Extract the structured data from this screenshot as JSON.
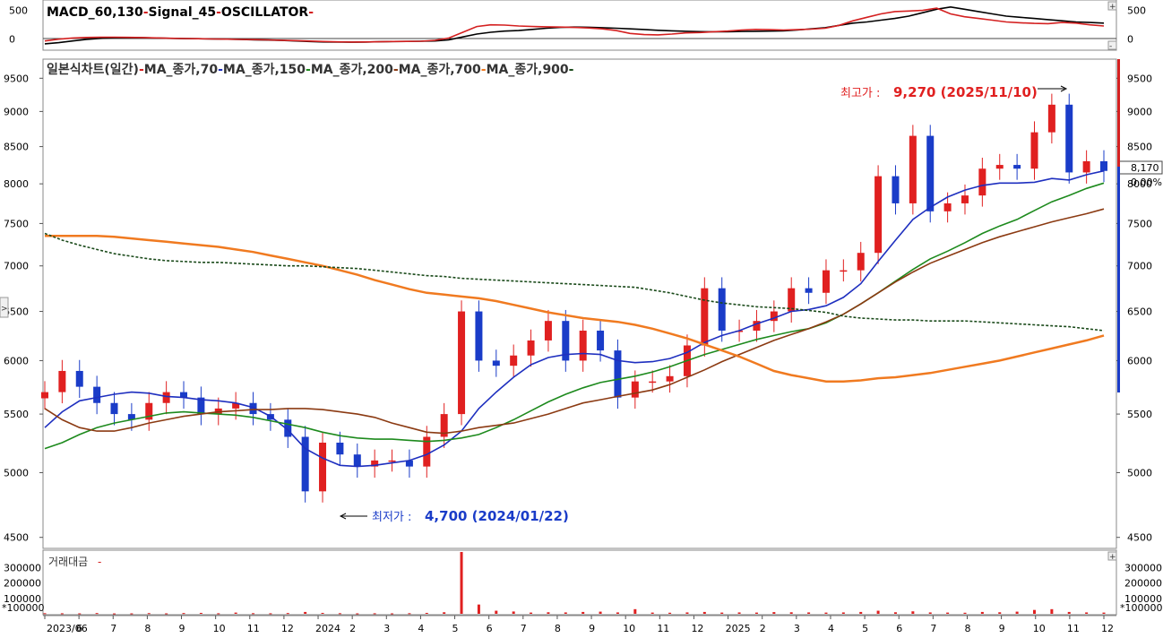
{
  "colors": {
    "macd": "#000000",
    "signal": "#d42020",
    "oscillator": "#d42020",
    "ma70": "#1e2fbf",
    "ma150": "#1d8a1d",
    "ma200": "#8b3a12",
    "ma700": "#f07a20",
    "ma900": "#1a4a1a",
    "candle_up": "#e02020",
    "candle_down": "#1a3cc8",
    "volume": "#e02020",
    "high_note": "#e02020",
    "low_note": "#1a3cc8"
  },
  "macd_panel": {
    "title_parts": [
      {
        "text": "MACD_60,130",
        "color": "#000000"
      },
      {
        "text": "-",
        "color": "#d42020"
      },
      {
        "text": "Signal_45",
        "color": "#000000"
      },
      {
        "text": "-",
        "color": "#d42020"
      },
      {
        "text": "OSCILLATOR",
        "color": "#000000"
      },
      {
        "text": "-",
        "color": "#d42020"
      }
    ],
    "y_ticks": [
      "500",
      "0"
    ],
    "macd": [
      -80,
      -60,
      -30,
      -5,
      15,
      25,
      28,
      25,
      20,
      15,
      10,
      8,
      5,
      0,
      -5,
      -10,
      -15,
      -22,
      -30,
      -40,
      -48,
      -50,
      -52,
      -50,
      -45,
      -40,
      -38,
      -36,
      -30,
      -10,
      40,
      90,
      120,
      140,
      150,
      170,
      190,
      205,
      210,
      208,
      200,
      190,
      180,
      168,
      155,
      145,
      138,
      132,
      128,
      130,
      135,
      138,
      140,
      145,
      160,
      180,
      200,
      240,
      280,
      300,
      330,
      360,
      400,
      460,
      520,
      560,
      520,
      480,
      440,
      400,
      380,
      360,
      340,
      320,
      300,
      290,
      280
    ],
    "signal": [
      -30,
      0,
      20,
      30,
      35,
      35,
      32,
      28,
      22,
      16,
      12,
      8,
      4,
      0,
      -4,
      -8,
      -12,
      -18,
      -24,
      -32,
      -40,
      -46,
      -50,
      -48,
      -44,
      -40,
      -38,
      -36,
      -20,
      20,
      120,
      220,
      250,
      245,
      230,
      220,
      215,
      210,
      205,
      195,
      180,
      150,
      100,
      80,
      75,
      90,
      110,
      115,
      130,
      140,
      160,
      170,
      165,
      160,
      165,
      175,
      190,
      240,
      320,
      380,
      440,
      480,
      490,
      500,
      540,
      440,
      390,
      360,
      330,
      300,
      285,
      275,
      270,
      290,
      280,
      250,
      230
    ]
  },
  "price_panel": {
    "legend_parts": [
      {
        "text": "일본식차트(일간)",
        "color": "#333333"
      },
      {
        "text": "-",
        "color": "#d42020"
      },
      {
        "text": "MA_종가,70",
        "color": "#333333"
      },
      {
        "text": "-",
        "color": "#1e2fbf"
      },
      {
        "text": "MA_종가,150",
        "color": "#333333"
      },
      {
        "text": "-",
        "color": "#1d8a1d"
      },
      {
        "text": "MA_종가,200",
        "color": "#333333"
      },
      {
        "text": "-",
        "color": "#8b3a12"
      },
      {
        "text": "MA_종가,700",
        "color": "#333333"
      },
      {
        "text": "-",
        "color": "#f07a20"
      },
      {
        "text": "MA_종가,900",
        "color": "#333333"
      },
      {
        "text": "-",
        "color": "#1a4a1a"
      }
    ],
    "y_ticks": [
      9500,
      9000,
      8500,
      8000,
      7500,
      7000,
      6500,
      6000,
      5500,
      5000,
      4500
    ],
    "current_price": "8,170",
    "current_change": "0.00%",
    "high_note_prefix": "최고가 : ",
    "high_note_value": "9,270 (2025/11/10)",
    "low_note_prefix": "최저가 : ",
    "low_note_value": "4,700 (2024/01/22)"
  },
  "volume_panel": {
    "title": "거래대금",
    "y_ticks": [
      "300000",
      "200000",
      "100000"
    ],
    "unit_tick": "*100000"
  },
  "x_axis": {
    "labels": [
      "2023/06",
      "6",
      "7",
      "8",
      "9",
      "10",
      "11",
      "12",
      "2024",
      "2",
      "3",
      "4",
      "5",
      "6",
      "7",
      "8",
      "9",
      "10",
      "11",
      "12",
      "2025",
      "2",
      "3",
      "4",
      "5",
      "6",
      "7",
      "8",
      "9",
      "10",
      "11",
      "12"
    ]
  },
  "chart_data": [
    {
      "type": "line",
      "title": "MACD_60,130 - Signal_45 - OSCILLATOR",
      "series": [
        {
          "name": "MACD_60,130",
          "values": [
            -80,
            -60,
            -30,
            -5,
            15,
            25,
            28,
            25,
            20,
            15,
            10,
            8,
            5,
            0,
            -5,
            -10,
            -15,
            -22,
            -30,
            -40,
            -48,
            -50,
            -52,
            -50,
            -45,
            -40,
            -38,
            -36,
            -30,
            -10,
            40,
            90,
            120,
            140,
            150,
            170,
            190,
            205,
            210,
            208,
            200,
            190,
            180,
            168,
            155,
            145,
            138,
            132,
            128,
            130,
            135,
            138,
            140,
            145,
            160,
            180,
            200,
            240,
            280,
            300,
            330,
            360,
            400,
            460,
            520,
            560,
            520,
            480,
            440,
            400,
            380,
            360,
            340,
            320,
            300,
            290,
            280
          ]
        },
        {
          "name": "Signal_45",
          "values": [
            -30,
            0,
            20,
            30,
            35,
            35,
            32,
            28,
            22,
            16,
            12,
            8,
            4,
            0,
            -4,
            -8,
            -12,
            -18,
            -24,
            -32,
            -40,
            -46,
            -50,
            -48,
            -44,
            -40,
            -38,
            -36,
            -20,
            20,
            120,
            220,
            250,
            245,
            230,
            220,
            215,
            210,
            205,
            195,
            180,
            150,
            100,
            80,
            75,
            90,
            110,
            115,
            130,
            140,
            160,
            170,
            165,
            160,
            165,
            175,
            190,
            240,
            320,
            380,
            440,
            480,
            490,
            500,
            540,
            440,
            390,
            360,
            330,
            300,
            285,
            275,
            270,
            290,
            280,
            250,
            230
          ]
        }
      ]
    },
    {
      "type": "line",
      "title": "일본식차트(일간)",
      "x": [
        "2023/06",
        "",
        "7",
        "",
        "8",
        "",
        "9",
        "",
        "10",
        "",
        "11",
        "",
        "12",
        "",
        "2024",
        "",
        "2",
        "",
        "3",
        "",
        "4",
        "",
        "5",
        "",
        "6",
        "",
        "7",
        "",
        "8",
        "",
        "9",
        "",
        "10",
        "",
        "11",
        "",
        "12",
        "",
        "2025",
        "",
        "2",
        "",
        "3",
        "",
        "4",
        "",
        "5",
        "",
        "6",
        "",
        "7",
        "",
        "8",
        "",
        "9",
        "",
        "10",
        "",
        "11",
        "",
        "12",
        ""
      ],
      "ylim": [
        4500,
        9500
      ],
      "series": [
        {
          "name": "close",
          "values": [
            5700,
            5900,
            5750,
            5600,
            5500,
            5450,
            5600,
            5700,
            5650,
            5500,
            5550,
            5600,
            5500,
            5450,
            5300,
            4850,
            5250,
            5150,
            5050,
            5100,
            5100,
            5050,
            5300,
            5500,
            6500,
            6000,
            5950,
            6050,
            6200,
            6400,
            6000,
            6300,
            6100,
            5650,
            5800,
            5800,
            5850,
            6150,
            6750,
            6300,
            6300,
            6400,
            6500,
            6750,
            6700,
            6950,
            6950,
            7150,
            8100,
            7750,
            8650,
            7650,
            7750,
            7850,
            8200,
            8250,
            8200,
            8700,
            9100,
            8150,
            8300,
            8170
          ]
        },
        {
          "name": "MA_종가,70",
          "values": [
            5380,
            5520,
            5620,
            5650,
            5680,
            5700,
            5690,
            5660,
            5650,
            5630,
            5620,
            5600,
            5560,
            5480,
            5360,
            5200,
            5120,
            5060,
            5050,
            5060,
            5080,
            5100,
            5150,
            5230,
            5350,
            5550,
            5700,
            5840,
            5960,
            6030,
            6060,
            6070,
            6060,
            6000,
            5980,
            5990,
            6020,
            6080,
            6180,
            6250,
            6300,
            6370,
            6430,
            6500,
            6520,
            6560,
            6650,
            6800,
            7050,
            7300,
            7550,
            7700,
            7830,
            7920,
            7980,
            8010,
            8010,
            8020,
            8070,
            8050,
            8120,
            8170
          ]
        },
        {
          "name": "MA_종가,150",
          "values": [
            5200,
            5250,
            5320,
            5380,
            5420,
            5450,
            5480,
            5510,
            5520,
            5510,
            5500,
            5490,
            5470,
            5440,
            5410,
            5380,
            5340,
            5310,
            5290,
            5280,
            5280,
            5270,
            5260,
            5270,
            5290,
            5320,
            5380,
            5450,
            5530,
            5610,
            5680,
            5740,
            5790,
            5820,
            5850,
            5890,
            5940,
            6000,
            6060,
            6110,
            6160,
            6210,
            6250,
            6290,
            6320,
            6380,
            6470,
            6580,
            6700,
            6830,
            6960,
            7080,
            7170,
            7270,
            7380,
            7470,
            7550,
            7660,
            7770,
            7850,
            7940,
            8010
          ]
        },
        {
          "name": "MA_종가,200",
          "values": [
            5550,
            5450,
            5380,
            5350,
            5350,
            5380,
            5420,
            5450,
            5480,
            5500,
            5520,
            5530,
            5540,
            5540,
            5550,
            5550,
            5540,
            5520,
            5500,
            5470,
            5420,
            5380,
            5340,
            5330,
            5350,
            5380,
            5400,
            5420,
            5460,
            5500,
            5550,
            5600,
            5630,
            5660,
            5690,
            5720,
            5770,
            5840,
            5910,
            5990,
            6060,
            6130,
            6200,
            6260,
            6320,
            6390,
            6470,
            6580,
            6700,
            6820,
            6930,
            7030,
            7110,
            7190,
            7270,
            7340,
            7400,
            7460,
            7520,
            7570,
            7620,
            7680
          ]
        },
        {
          "name": "MA_종가,700",
          "values": [
            7350,
            7350,
            7350,
            7350,
            7340,
            7320,
            7300,
            7280,
            7260,
            7240,
            7220,
            7190,
            7160,
            7120,
            7080,
            7040,
            7000,
            6950,
            6900,
            6840,
            6790,
            6740,
            6700,
            6680,
            6660,
            6640,
            6610,
            6570,
            6530,
            6490,
            6460,
            6430,
            6410,
            6390,
            6360,
            6320,
            6270,
            6220,
            6160,
            6100,
            6040,
            5970,
            5900,
            5860,
            5830,
            5800,
            5800,
            5810,
            5830,
            5840,
            5860,
            5880,
            5910,
            5940,
            5970,
            6000,
            6040,
            6080,
            6120,
            6160,
            6200,
            6250
          ]
        },
        {
          "name": "MA_종가,900",
          "values": [
            7380,
            7300,
            7240,
            7190,
            7140,
            7110,
            7080,
            7060,
            7050,
            7040,
            7040,
            7030,
            7020,
            7010,
            7000,
            7000,
            6990,
            6980,
            6970,
            6950,
            6930,
            6910,
            6890,
            6880,
            6860,
            6850,
            6840,
            6830,
            6820,
            6810,
            6800,
            6790,
            6780,
            6770,
            6760,
            6730,
            6700,
            6660,
            6620,
            6590,
            6570,
            6550,
            6540,
            6530,
            6510,
            6490,
            6450,
            6430,
            6420,
            6410,
            6410,
            6400,
            6400,
            6400,
            6390,
            6380,
            6370,
            6360,
            6350,
            6340,
            6320,
            6300
          ]
        }
      ]
    },
    {
      "type": "bar",
      "title": "거래대금",
      "ylim": [
        0,
        400000
      ],
      "values": [
        4000,
        3500,
        3000,
        5000,
        2500,
        3000,
        4500,
        3000,
        5000,
        6000,
        3500,
        8000,
        4000,
        3500,
        5000,
        12000,
        6000,
        4000,
        3000,
        3500,
        3000,
        4000,
        6000,
        10000,
        400000,
        60000,
        20000,
        15000,
        8000,
        10000,
        9000,
        12000,
        14000,
        9000,
        30000,
        8000,
        7000,
        9000,
        12000,
        8000,
        9000,
        8000,
        11000,
        10000,
        9000,
        8000,
        9000,
        12000,
        20000,
        10000,
        16000,
        9000,
        8000,
        7000,
        12000,
        10000,
        14000,
        25000,
        30000,
        12000,
        9000,
        8000
      ]
    }
  ]
}
